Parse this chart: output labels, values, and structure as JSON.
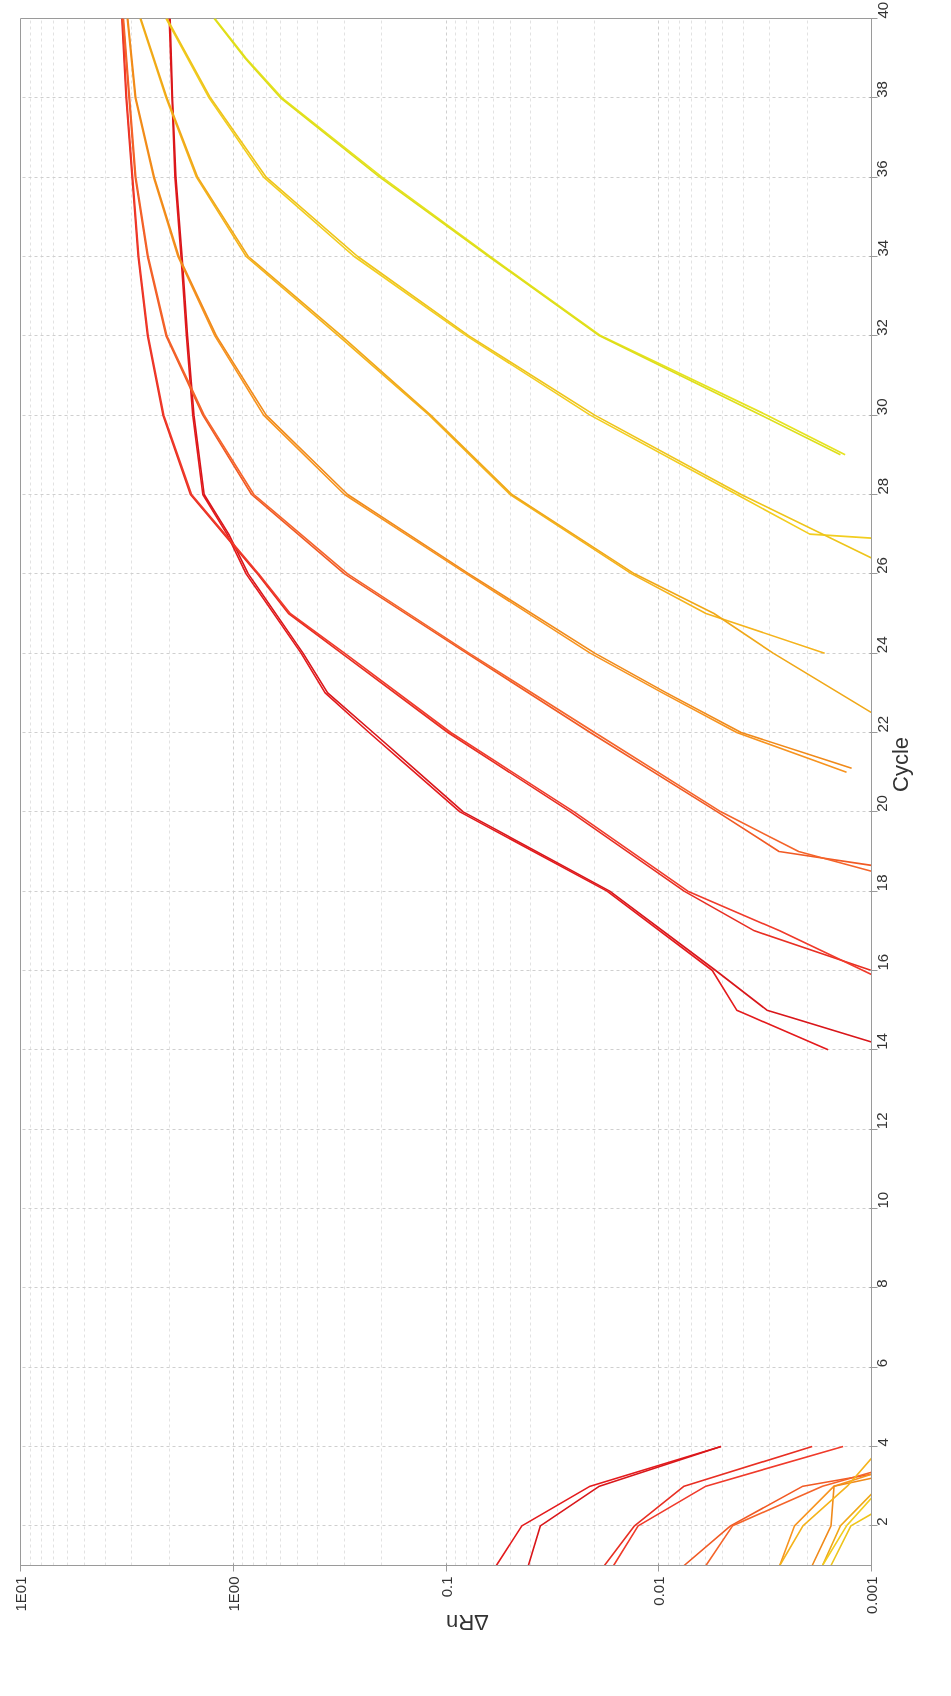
{
  "chart_data": {
    "type": "line",
    "xlabel": "ΔRn",
    "ylabel": "Cycle",
    "log": "x",
    "grid": true,
    "xlim": [
      10,
      0.001
    ],
    "xticks": [
      {
        "value": 10,
        "label": "1E01"
      },
      {
        "value": 1,
        "label": "1E00"
      },
      0.1,
      0.01,
      0.001
    ],
    "ylim": [
      1,
      40
    ],
    "yticks": [
      2,
      4,
      6,
      8,
      10,
      12,
      14,
      16,
      18,
      20,
      22,
      24,
      26,
      28,
      30,
      32,
      34,
      36,
      38,
      40
    ],
    "series": [
      {
        "color": "#e41a1c",
        "x": [
          0.058,
          0.044,
          0.021,
          0.0051,
          null,
          0.0016,
          0.0043,
          0.0056,
          0.0175,
          0.086,
          0.23,
          0.37,
          0.48,
          0.87,
          1.07,
          1.39,
          1.55,
          1.66,
          1.76,
          1.88,
          1.94,
          2.0
        ],
        "values": [
          1,
          2,
          3,
          4,
          null,
          14,
          15,
          16,
          18,
          20,
          22,
          23,
          24,
          26,
          27,
          28,
          30,
          32,
          34,
          36,
          38,
          40
        ]
      },
      {
        "color": "#d9161a",
        "x": [
          0.041,
          0.036,
          0.019,
          0.0051,
          null,
          0.001,
          0.0031,
          0.0054,
          0.017,
          0.083,
          0.22,
          0.36,
          0.47,
          0.85,
          1.05,
          1.37,
          1.53,
          1.64,
          1.74,
          1.86,
          1.93,
          1.98
        ],
        "values": [
          1,
          2,
          3,
          4,
          null,
          14.2,
          15,
          16,
          18,
          20,
          22,
          23,
          24,
          26,
          27,
          28,
          30,
          32,
          34,
          36,
          38,
          40
        ]
      },
      {
        "color": "#e82e22",
        "x": [
          0.018,
          0.013,
          0.0076,
          0.0019,
          null,
          0.001,
          0.00355,
          0.0076,
          0.026,
          0.098,
          0.31,
          0.55,
          0.77,
          1.59,
          2.14,
          2.53,
          2.8,
          2.99,
          3.19,
          3.34
        ],
        "values": [
          1,
          2,
          3,
          4,
          null,
          16,
          17,
          18,
          20,
          22,
          24,
          25,
          26,
          28,
          30,
          32,
          34,
          36,
          38,
          40
        ]
      },
      {
        "color": "#f03a2a",
        "x": [
          0.0163,
          0.0125,
          0.006,
          0.00136,
          null,
          0.001,
          0.0027,
          0.0073,
          0.025,
          0.095,
          0.3,
          0.54,
          0.76,
          1.57,
          2.12,
          2.51,
          2.78,
          2.97,
          3.17,
          3.32
        ],
        "values": [
          1,
          2,
          3,
          4,
          null,
          15.9,
          17,
          18,
          20,
          22,
          24,
          25,
          26,
          28,
          30,
          32,
          34,
          36,
          38,
          40
        ]
      },
      {
        "color": "#f15a24",
        "x": [
          0.0076,
          0.0046,
          0.0021,
          0.001,
          null,
          0.001,
          0.00272,
          0.0053,
          0.021,
          0.08,
          0.3,
          0.82,
          1.39,
          2.07,
          2.53,
          2.89,
          3.09,
          3.3
        ],
        "values": [
          1,
          2,
          3,
          3.3,
          null,
          18.65,
          19,
          20,
          22,
          24,
          26,
          28,
          30,
          32,
          34,
          36,
          38,
          40
        ]
      },
      {
        "color": "#f4642a",
        "x": [
          0.006,
          0.0045,
          0.0017,
          0.001,
          null,
          0.001,
          0.0022,
          0.0051,
          0.02,
          0.078,
          0.29,
          0.8,
          1.37,
          2.05,
          2.51,
          2.87,
          3.07,
          3.28
        ],
        "values": [
          1,
          2,
          3,
          3.35,
          null,
          18.5,
          19,
          20,
          22,
          24,
          26,
          28,
          30,
          32,
          34,
          36,
          38,
          40
        ]
      },
      {
        "color": "#f7931e",
        "x": [
          0.0027,
          0.0023,
          0.0015,
          0.001,
          null,
          0.00131,
          0.0043,
          0.0096,
          0.021,
          0.08,
          0.3,
          0.72,
          1.22,
          1.82,
          2.37,
          2.89,
          3.15
        ],
        "values": [
          1,
          2,
          3,
          3.3,
          null,
          21,
          22,
          23,
          24,
          26,
          28,
          30,
          32,
          34,
          36,
          38,
          40
        ]
      },
      {
        "color": "#f08a1a",
        "x": [
          0.0019,
          0.00155,
          0.0015,
          0.001,
          null,
          0.00124,
          0.0041,
          0.0092,
          0.02,
          0.078,
          0.29,
          0.7,
          1.2,
          1.8,
          2.35,
          2.87,
          3.13
        ],
        "values": [
          1,
          2,
          3,
          3.2,
          null,
          21.1,
          22,
          23,
          24,
          26,
          28,
          30,
          32,
          34,
          36,
          38,
          40
        ]
      },
      {
        "color": "#f5b31b",
        "x": [
          0.0027,
          0.0021,
          0.0013,
          0.001,
          null,
          0.00166,
          0.006,
          0.0134,
          0.05,
          0.12,
          0.32,
          0.87,
          1.49,
          2.07,
          2.74
        ],
        "values": [
          1,
          2,
          3,
          3.7,
          null,
          24,
          25,
          26,
          28,
          30,
          32,
          34,
          36,
          38,
          40
        ]
      },
      {
        "color": "#f0a818",
        "x": [
          0.0017,
          0.0014,
          0.001,
          null,
          0.001,
          0.0029,
          0.0055,
          0.013,
          0.049,
          0.118,
          0.31,
          0.85,
          1.47,
          2.05,
          2.72
        ],
        "values": [
          1,
          2,
          2.8,
          null,
          22.5,
          24,
          25,
          26,
          28,
          30,
          32,
          34,
          36,
          38,
          40
        ]
      },
      {
        "color": "#f2cd1f",
        "x": [
          0.0017,
          0.00131,
          0.001,
          null,
          0.001,
          0.00195,
          0.0043,
          0.021,
          0.08,
          0.27,
          0.72,
          1.3,
          2.07
        ],
        "values": [
          1,
          2,
          2.7,
          null,
          26.9,
          27,
          28,
          30,
          32,
          34,
          36,
          38,
          40
        ]
      },
      {
        "color": "#eec41a",
        "x": [
          0.00155,
          0.00125,
          0.001,
          null,
          0.001,
          0.0041,
          0.02,
          0.078,
          0.26,
          0.7,
          1.28,
          2.05
        ],
        "values": [
          1,
          2,
          2.3,
          null,
          26.4,
          28,
          30,
          32,
          34,
          36,
          38,
          40
        ]
      },
      {
        "color": "#e6e21f",
        "x": [
          0.00133,
          0.0031,
          0.0187,
          0.062,
          0.2,
          0.59,
          0.87,
          1.22
        ],
        "values": [
          29,
          30,
          32,
          34,
          36,
          38,
          39,
          40
        ]
      },
      {
        "color": "#dede19",
        "x": [
          0.0014,
          0.0033,
          0.019,
          0.063,
          0.205,
          0.6,
          0.88,
          1.23
        ],
        "values": [
          29,
          30,
          32,
          34,
          36,
          38,
          39,
          40
        ]
      }
    ]
  }
}
